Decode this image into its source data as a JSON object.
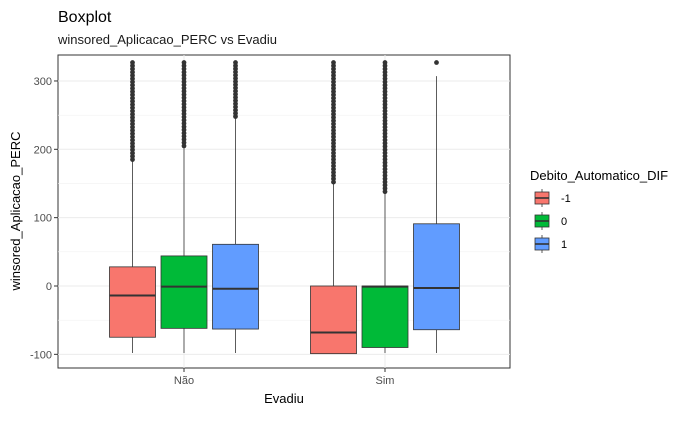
{
  "chart_data": {
    "type": "boxplot",
    "title": "Boxplot",
    "subtitle": "winsored_Aplicacao_PERC vs Evadiu",
    "xlabel": "Evadiu",
    "ylabel": "winsored_Aplicacao_PERC",
    "categories": [
      "Não",
      "Sim"
    ],
    "ylim": [
      -120,
      338
    ],
    "yticks": [
      -100,
      0,
      100,
      200,
      300
    ],
    "grid": true,
    "legend": {
      "title": "Debito_Automatico_DIF",
      "position": "right",
      "entries": [
        "-1",
        "0",
        "1"
      ]
    },
    "series": [
      {
        "name": "-1",
        "color": "#F8766D",
        "boxes": [
          {
            "category": "Não",
            "whisker_low": -98,
            "q1": -75,
            "median": -14,
            "q3": 28,
            "whisker_high": 185,
            "outlier_range": [
              185,
              327
            ]
          },
          {
            "category": "Sim",
            "whisker_low": -99,
            "q1": -99,
            "median": -68,
            "q3": 0,
            "whisker_high": 152,
            "outlier_range": [
              152,
              327
            ]
          }
        ]
      },
      {
        "name": "0",
        "color": "#00BA38",
        "boxes": [
          {
            "category": "Não",
            "whisker_low": -98,
            "q1": -62,
            "median": -1,
            "q3": 44,
            "whisker_high": 205,
            "outlier_range": [
              205,
              327
            ]
          },
          {
            "category": "Sim",
            "whisker_low": -98,
            "q1": -90,
            "median": -1,
            "q3": 0,
            "whisker_high": 138,
            "outlier_range": [
              138,
              327
            ]
          }
        ]
      },
      {
        "name": "1",
        "color": "#619CFF",
        "boxes": [
          {
            "category": "Não",
            "whisker_low": -98,
            "q1": -63,
            "median": -4,
            "q3": 61,
            "whisker_high": 248,
            "outlier_range": [
              248,
              327
            ]
          },
          {
            "category": "Sim",
            "whisker_low": -98,
            "q1": -64,
            "median": -3,
            "q3": 91,
            "whisker_high": 307,
            "outlier_range": [
              327,
              327
            ]
          }
        ]
      }
    ]
  }
}
